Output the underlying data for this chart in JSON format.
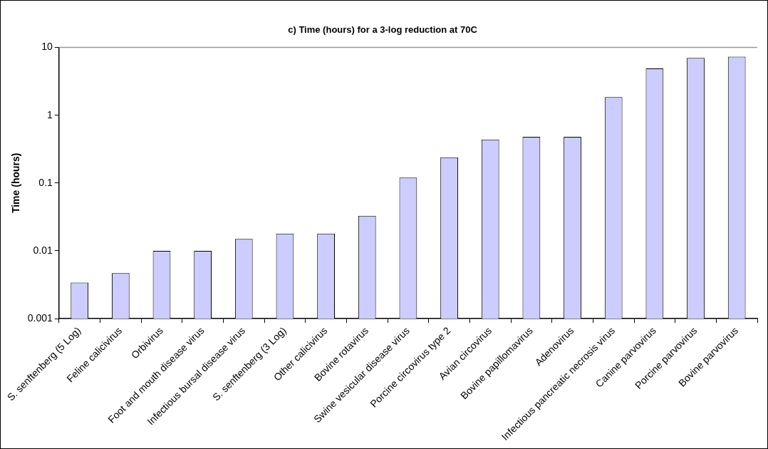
{
  "chart_data": {
    "type": "bar",
    "title": "c) Time (hours) for a 3-log reduction at 70C",
    "ylabel": "Time (hours)",
    "categories": [
      "S. senftenberg (5 Log)",
      "Feline calicivirus",
      "Orbivirus",
      "Foot and mouth disease virus",
      "Infectious bursal disease virus",
      "S. senftenberg (3 Log)",
      "Other calicivirus",
      "Bovine rotavirus",
      "Swine vesicular disease virus",
      "Porcine circovirus type 2",
      "Avian circovirus",
      "Bovine papillomavirus",
      "Adenovirus",
      "Infectious pancreatic necrosis virus",
      "Canine parvovirus",
      "Porcine parvovirus",
      "Bovine parvovirus"
    ],
    "values": [
      0.0034,
      0.0047,
      0.01,
      0.01,
      0.015,
      0.018,
      0.018,
      0.033,
      0.12,
      0.24,
      0.44,
      0.48,
      0.48,
      1.85,
      4.9,
      7.0,
      7.3
    ],
    "color": "#ccccff",
    "log": "y",
    "ylim": [
      0.001,
      10
    ],
    "yticks": [
      0.001,
      0.01,
      0.1,
      1,
      10
    ],
    "grid": false,
    "legend": false
  }
}
